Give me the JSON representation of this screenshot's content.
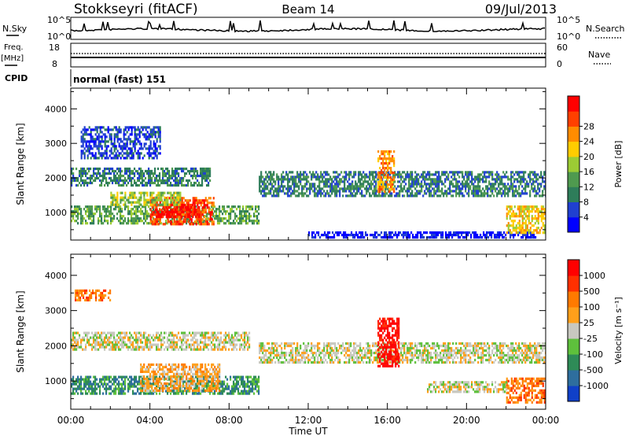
{
  "header": {
    "title": "Stokkseyri (fitACF)",
    "beam": "Beam 14",
    "date": "09/Jul/2013"
  },
  "top_panels": {
    "nsky_label": "N.Sky",
    "nsearch_label": "N.Search",
    "noise_ticks": [
      "10^5",
      "10^0"
    ],
    "freq_label_line1": "Freq.",
    "freq_label_line2": "[MHz]",
    "freq_ticks": [
      "18",
      "8"
    ],
    "nave_label": "Nave",
    "nave_ticks": [
      "60",
      "0"
    ],
    "cpid_label": "CPID",
    "cpid_text": "normal (fast) 151"
  },
  "colors": {
    "power_scale": [
      "#0000ff",
      "#2040d0",
      "#2e7d5a",
      "#4f9a4f",
      "#9ccc34",
      "#ffcc00",
      "#ff8c00",
      "#ff4000",
      "#ff0000"
    ],
    "velocity_scale": [
      "#1040c8",
      "#2e6e9e",
      "#2e8b57",
      "#5ec03c",
      "#c8c8c0",
      "#ff9f1a",
      "#ff7a00",
      "#ff3000",
      "#ff0000"
    ]
  },
  "chart_data": [
    {
      "type": "heatmap",
      "name": "Power",
      "ylabel": "Slant Range [km]",
      "ylim": [
        200,
        4600
      ],
      "yticks": [
        "1000",
        "2000",
        "3000",
        "4000"
      ],
      "xlim": [
        0,
        24
      ],
      "xticks": [
        "00:00",
        "04:00",
        "08:00",
        "12:00",
        "16:00",
        "20:00",
        "00:00"
      ],
      "colorbar": {
        "label": "Power [dB]",
        "ticks": [
          "4",
          "8",
          "12",
          "16",
          "20",
          "24",
          "28"
        ]
      },
      "regions": [
        {
          "t0": 0.0,
          "t1": 9.5,
          "r0": 700,
          "r1": 1200,
          "level": 3
        },
        {
          "t0": 4.0,
          "t1": 7.2,
          "r0": 650,
          "r1": 1450,
          "level": 7
        },
        {
          "t0": 4.3,
          "t1": 6.5,
          "r0": 850,
          "r1": 1250,
          "level": 8
        },
        {
          "t0": 0.0,
          "t1": 7.0,
          "r0": 1800,
          "r1": 2300,
          "level": 2
        },
        {
          "t0": 2.0,
          "t1": 5.5,
          "r0": 1250,
          "r1": 1600,
          "level": 4
        },
        {
          "t0": 0.5,
          "t1": 4.5,
          "r0": 2600,
          "r1": 3500,
          "level": 1
        },
        {
          "t0": 9.5,
          "t1": 24.0,
          "r0": 1500,
          "r1": 2200,
          "level": 2
        },
        {
          "t0": 15.5,
          "t1": 16.3,
          "r0": 1600,
          "r1": 2800,
          "level": 6
        },
        {
          "t0": 12.0,
          "t1": 23.5,
          "r0": 250,
          "r1": 450,
          "level": 0
        },
        {
          "t0": 22.0,
          "t1": 24.0,
          "r0": 400,
          "r1": 1200,
          "level": 5
        }
      ]
    },
    {
      "type": "heatmap",
      "name": "Velocity",
      "ylabel": "Slant Range [km]",
      "ylim": [
        200,
        4600
      ],
      "yticks": [
        "1000",
        "2000",
        "3000",
        "4000"
      ],
      "xlabel": "Time UT",
      "xlim": [
        0,
        24
      ],
      "xticks": [
        "00:00",
        "04:00",
        "08:00",
        "12:00",
        "16:00",
        "20:00",
        "00:00"
      ],
      "colorbar": {
        "label": "Velocity [m s⁻¹]",
        "ticks": [
          "1000",
          "500",
          "100",
          "25",
          "-25",
          "-100",
          "-500",
          "-1000"
        ]
      },
      "regions": [
        {
          "t0": 0.0,
          "t1": 9.5,
          "r0": 650,
          "r1": 1150,
          "level": 2
        },
        {
          "t0": 3.5,
          "t1": 7.5,
          "r0": 700,
          "r1": 1500,
          "level": 5
        },
        {
          "t0": 0.0,
          "t1": 9.0,
          "r0": 1900,
          "r1": 2400,
          "level": 4
        },
        {
          "t0": 0.2,
          "t1": 2.0,
          "r0": 3300,
          "r1": 3600,
          "level": 6
        },
        {
          "t0": 9.5,
          "t1": 24.0,
          "r0": 1500,
          "r1": 2100,
          "level": 4
        },
        {
          "t0": 15.5,
          "t1": 16.6,
          "r0": 1400,
          "r1": 2800,
          "level": 8
        },
        {
          "t0": 22.0,
          "t1": 24.0,
          "r0": 400,
          "r1": 1100,
          "level": 6
        },
        {
          "t0": 18.0,
          "t1": 22.0,
          "r0": 700,
          "r1": 1000,
          "level": 4
        }
      ]
    }
  ]
}
